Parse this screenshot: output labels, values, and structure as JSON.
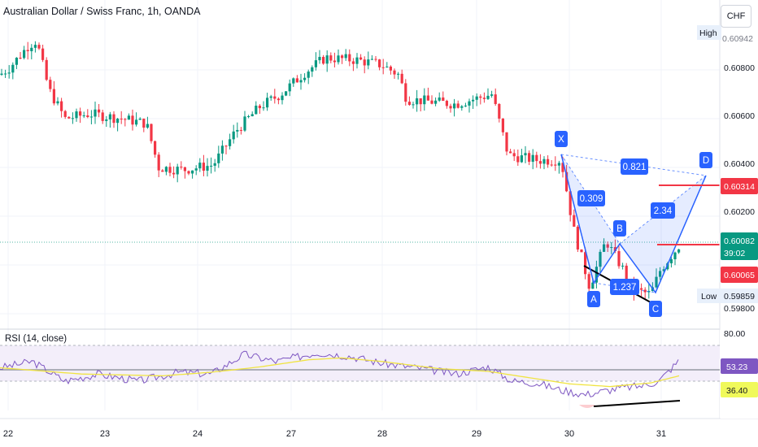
{
  "header": {
    "title": "Australian Dollar / Swiss Franc, 1h, OANDA",
    "currency_button": "CHF"
  },
  "price_axis": {
    "ticks": [
      "0.60800",
      "0.60600",
      "0.60400",
      "0.60200",
      "0.59800"
    ],
    "high_label": "High",
    "high_value": "0.60942",
    "low_label": "Low",
    "low_value": "0.59859",
    "current_price": "0.60082",
    "countdown": "39:02",
    "target_price": "0.60314",
    "bid_price": "0.60065"
  },
  "rsi": {
    "title": "RSI (14, close)",
    "ticks": [
      "80.00"
    ],
    "value": "53.23",
    "signal_value": "36.40"
  },
  "time_axis": {
    "labels": [
      "22",
      "23",
      "24",
      "27",
      "28",
      "29",
      "30",
      "31"
    ]
  },
  "pattern": {
    "points": [
      "X",
      "A",
      "B",
      "C",
      "D"
    ],
    "ratios": [
      "0.309",
      "0.821",
      "2.34",
      "1.237"
    ]
  },
  "colors": {
    "up": "#089981",
    "down": "#f23645",
    "pattern": "#2962ff",
    "target_line": "#f23645",
    "rsi_line": "#7e57c2",
    "rsi_ma": "#f0e442",
    "rsi_band": "#f3eefa"
  },
  "chart_data": {
    "type": "candlestick",
    "symbol": "AUDCHF",
    "timeframe": "1h",
    "price_path": [
      [
        0,
        0.6078
      ],
      [
        12,
        0.6081
      ],
      [
        35,
        0.609
      ],
      [
        45,
        0.6092
      ],
      [
        60,
        0.6072
      ],
      [
        80,
        0.606
      ],
      [
        110,
        0.6062
      ],
      [
        150,
        0.606
      ],
      [
        180,
        0.6058
      ],
      [
        195,
        0.604
      ],
      [
        225,
        0.6039
      ],
      [
        262,
        0.6041
      ],
      [
        290,
        0.6055
      ],
      [
        320,
        0.6065
      ],
      [
        345,
        0.607
      ],
      [
        375,
        0.6079
      ],
      [
        400,
        0.6085
      ],
      [
        440,
        0.6084
      ],
      [
        470,
        0.6082
      ],
      [
        490,
        0.6078
      ],
      [
        500,
        0.6068
      ],
      [
        560,
        0.6066
      ],
      [
        605,
        0.607
      ],
      [
        625,
        0.6045
      ],
      [
        660,
        0.6043
      ],
      [
        690,
        0.6043
      ],
      [
        705,
        0.6015
      ],
      [
        725,
        0.5991
      ],
      [
        745,
        0.601
      ],
      [
        768,
        0.5997
      ],
      [
        775,
        0.599
      ],
      [
        800,
        0.5988
      ],
      [
        812,
        0.5998
      ],
      [
        835,
        0.6008
      ]
    ],
    "rsi_path": [
      [
        0,
        45
      ],
      [
        40,
        52
      ],
      [
        80,
        30
      ],
      [
        120,
        38
      ],
      [
        170,
        30
      ],
      [
        220,
        40
      ],
      [
        260,
        38
      ],
      [
        300,
        60
      ],
      [
        340,
        52
      ],
      [
        390,
        62
      ],
      [
        430,
        58
      ],
      [
        470,
        50
      ],
      [
        520,
        44
      ],
      [
        560,
        38
      ],
      [
        600,
        46
      ],
      [
        630,
        30
      ],
      [
        660,
        28
      ],
      [
        690,
        20
      ],
      [
        720,
        15
      ],
      [
        760,
        22
      ],
      [
        790,
        25
      ],
      [
        810,
        30
      ],
      [
        835,
        53
      ]
    ],
    "rsi_ma_path": [
      [
        0,
        45
      ],
      [
        100,
        38
      ],
      [
        200,
        36
      ],
      [
        260,
        40
      ],
      [
        320,
        46
      ],
      [
        380,
        54
      ],
      [
        420,
        56
      ],
      [
        470,
        52
      ],
      [
        540,
        44
      ],
      [
        600,
        41
      ],
      [
        650,
        34
      ],
      [
        700,
        27
      ],
      [
        750,
        24
      ],
      [
        800,
        28
      ],
      [
        835,
        36
      ]
    ]
  }
}
